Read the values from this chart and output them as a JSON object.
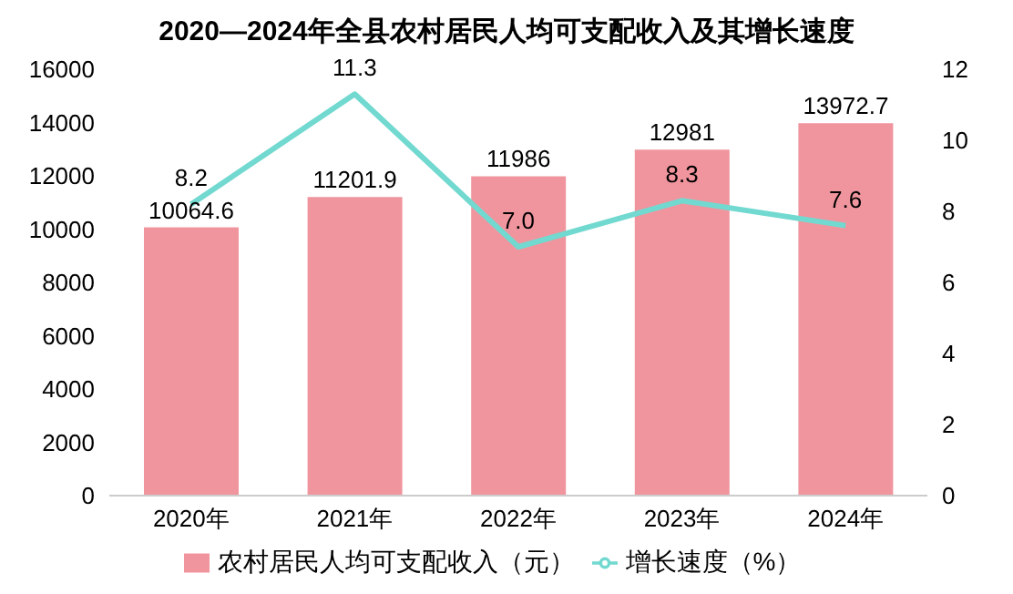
{
  "chart_data": {
    "type": "bar",
    "title": "2020—2024年全县农村居民人均可支配收入及其增长速度",
    "categories": [
      "2020年",
      "2021年",
      "2022年",
      "2023年",
      "2024年"
    ],
    "series": [
      {
        "name": "农村居民人均可支配收入（元）",
        "color": "#f0959e",
        "values": [
          10064.6,
          11201.9,
          11986,
          12981,
          13972.7
        ],
        "value_labels": [
          "10064.6",
          "11201.9",
          "11986",
          "12981",
          "13972.7"
        ]
      },
      {
        "name": "增长速度（%）",
        "type": "line",
        "axis": "y2",
        "color": "#72d9d0",
        "values": [
          8.2,
          11.3,
          7.0,
          8.3,
          7.6
        ],
        "value_labels": [
          "8.2",
          "11.3",
          "7.0",
          "8.3",
          "7.6"
        ]
      }
    ],
    "ylim": [
      0,
      16000
    ],
    "yticks": [
      0,
      2000,
      4000,
      6000,
      8000,
      10000,
      12000,
      14000,
      16000
    ],
    "y2lim": [
      0,
      12
    ],
    "y2ticks": [
      0,
      2,
      4,
      6,
      8,
      10,
      12
    ],
    "legend": "bottom",
    "marker": "none",
    "line_style": "solid"
  }
}
